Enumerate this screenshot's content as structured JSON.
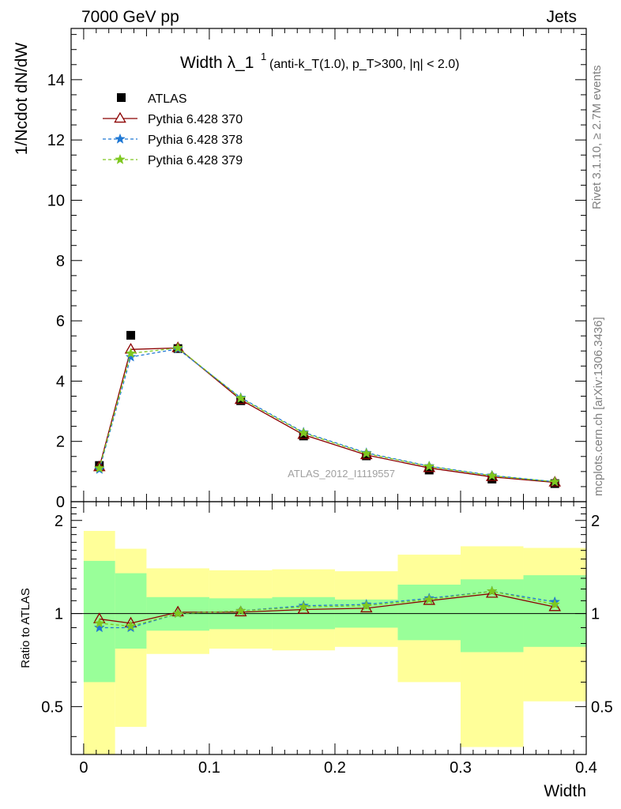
{
  "header": {
    "left": "7000 GeV pp",
    "right": "Jets"
  },
  "side": {
    "rivet": "Rivet 3.1.10, ≥ 2.7M events",
    "source": "mcplots.cern.ch [arXiv:1306.3436]"
  },
  "title": {
    "main": "Width λ_1",
    "sup": "1",
    "sub": "(anti-k_T(1.0), p_T>300, |η| < 2.0)"
  },
  "watermark": "ATLAS_2012_I1119557",
  "colors": {
    "atlas": "#000000",
    "p370": "#8b0000",
    "p378": "#1f78d4",
    "p379": "#7ec820",
    "band_inner": "#99ff99",
    "band_outer": "#ffff99"
  },
  "chart_data": {
    "type": "line",
    "xlabel": "Width",
    "ylabel": "1/Ncdot dN/dW",
    "ylabel_ratio": "Ratio to ATLAS",
    "xlim": [
      -0.01,
      0.4
    ],
    "ylim": [
      0,
      15.7
    ],
    "ylim_ratio": [
      0.35,
      2.3
    ],
    "x_ticks": [
      "0",
      "0.1",
      "0.2",
      "0.3",
      "0.4"
    ],
    "x_tick_values": [
      0,
      0.1,
      0.2,
      0.3,
      0.4
    ],
    "y_ticks": [
      "0",
      "2",
      "4",
      "6",
      "8",
      "10",
      "12",
      "14"
    ],
    "y_tick_values": [
      0,
      2,
      4,
      6,
      8,
      10,
      12,
      14
    ],
    "ratio_ticks": [
      "0.5",
      "1",
      "2"
    ],
    "ratio_tick_values": [
      0.5,
      1,
      2
    ],
    "x": [
      0.0125,
      0.0375,
      0.075,
      0.125,
      0.175,
      0.225,
      0.275,
      0.325,
      0.375
    ],
    "bin_edges": [
      0,
      0.025,
      0.05,
      0.1,
      0.15,
      0.2,
      0.25,
      0.3,
      0.35,
      0.4
    ],
    "legend_position": "top-left",
    "series": [
      {
        "name": "ATLAS",
        "marker": "square",
        "values": [
          1.2,
          5.52,
          5.08,
          3.35,
          2.18,
          1.52,
          1.05,
          0.75,
          0.6
        ]
      },
      {
        "name": "Pythia 6.428 370",
        "marker": "triangle",
        "values": [
          1.15,
          5.05,
          5.1,
          3.38,
          2.22,
          1.55,
          1.12,
          0.82,
          0.64
        ]
      },
      {
        "name": "Pythia 6.428 378",
        "marker": "star",
        "values": [
          1.07,
          4.8,
          5.07,
          3.45,
          2.3,
          1.62,
          1.18,
          0.87,
          0.66
        ]
      },
      {
        "name": "Pythia 6.428 379",
        "marker": "star",
        "values": [
          1.11,
          4.92,
          5.1,
          3.43,
          2.28,
          1.6,
          1.17,
          0.86,
          0.66
        ]
      }
    ],
    "ratio": {
      "band_inner": [
        [
          0.6,
          1.48
        ],
        [
          0.77,
          1.35
        ],
        [
          0.88,
          1.13
        ],
        [
          0.89,
          1.12
        ],
        [
          0.89,
          1.13
        ],
        [
          0.9,
          1.11
        ],
        [
          0.82,
          1.24
        ],
        [
          0.75,
          1.29
        ],
        [
          0.78,
          1.33
        ]
      ],
      "band_outer": [
        [
          0.35,
          1.85
        ],
        [
          0.43,
          1.62
        ],
        [
          0.74,
          1.4
        ],
        [
          0.77,
          1.38
        ],
        [
          0.76,
          1.39
        ],
        [
          0.78,
          1.37
        ],
        [
          0.6,
          1.55
        ],
        [
          0.37,
          1.65
        ],
        [
          0.52,
          1.63
        ]
      ],
      "series": [
        {
          "name": "Pythia 6.428 370",
          "values": [
            0.96,
            0.93,
            1.01,
            1.01,
            1.03,
            1.04,
            1.1,
            1.16,
            1.05
          ]
        },
        {
          "name": "Pythia 6.428 378",
          "values": [
            0.9,
            0.9,
            1.0,
            1.02,
            1.06,
            1.07,
            1.12,
            1.18,
            1.09
          ]
        },
        {
          "name": "Pythia 6.428 379",
          "values": [
            0.93,
            0.91,
            1.0,
            1.02,
            1.05,
            1.06,
            1.11,
            1.18,
            1.07
          ]
        }
      ]
    }
  }
}
